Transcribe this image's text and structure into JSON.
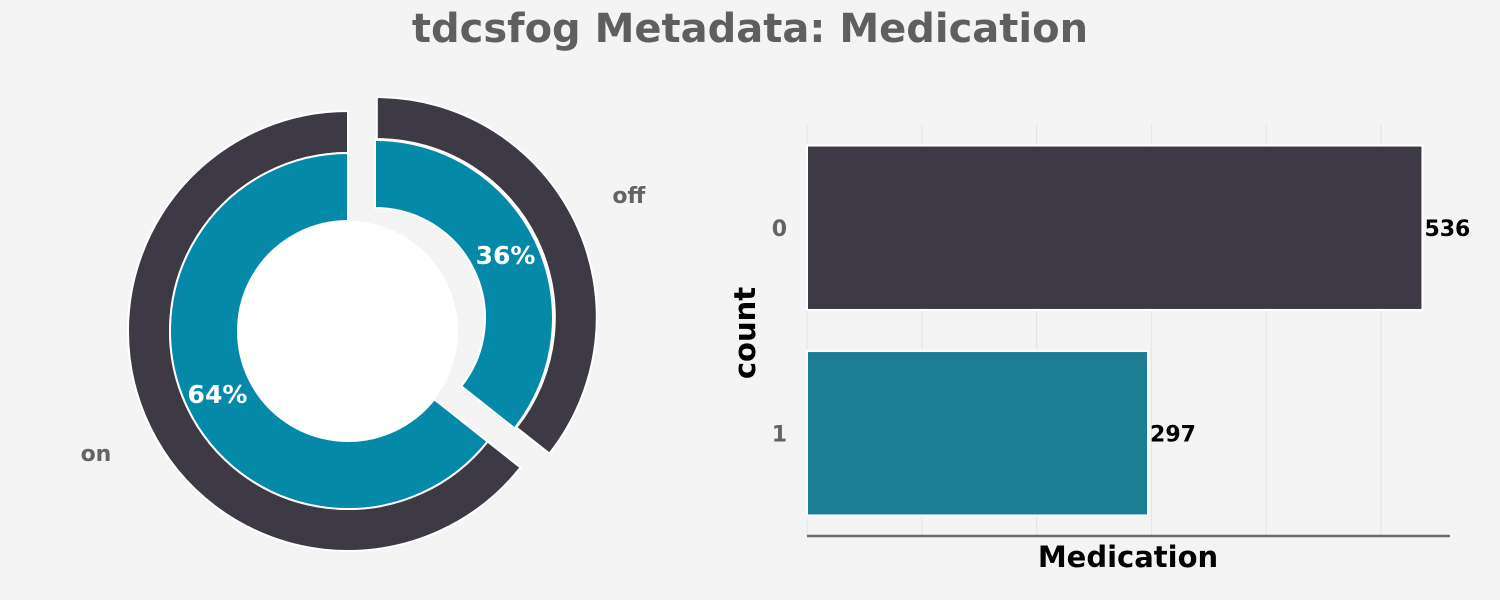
{
  "title": "tdcsfog Metadata: Medication",
  "colors": {
    "background": "#f4f4f4",
    "dark": "#3d3a46",
    "teal": "#048aa8",
    "bar_teal": "#1b7e94",
    "title": "#5f5f5f",
    "tick": "#646464"
  },
  "chart_data": [
    {
      "type": "pie",
      "style": "nested donut, exploded",
      "slices": [
        {
          "label": "off",
          "percent_label": "36%",
          "value": 297
        },
        {
          "label": "on",
          "percent_label": "64%",
          "value": 536
        }
      ]
    },
    {
      "type": "bar",
      "orientation": "horizontal",
      "categories": [
        "0",
        "1"
      ],
      "values": [
        536,
        297
      ],
      "value_labels": [
        "536",
        "297"
      ],
      "xlabel": "Medication",
      "ylabel": "count",
      "xlim": [
        0,
        560
      ],
      "grid": true
    }
  ]
}
